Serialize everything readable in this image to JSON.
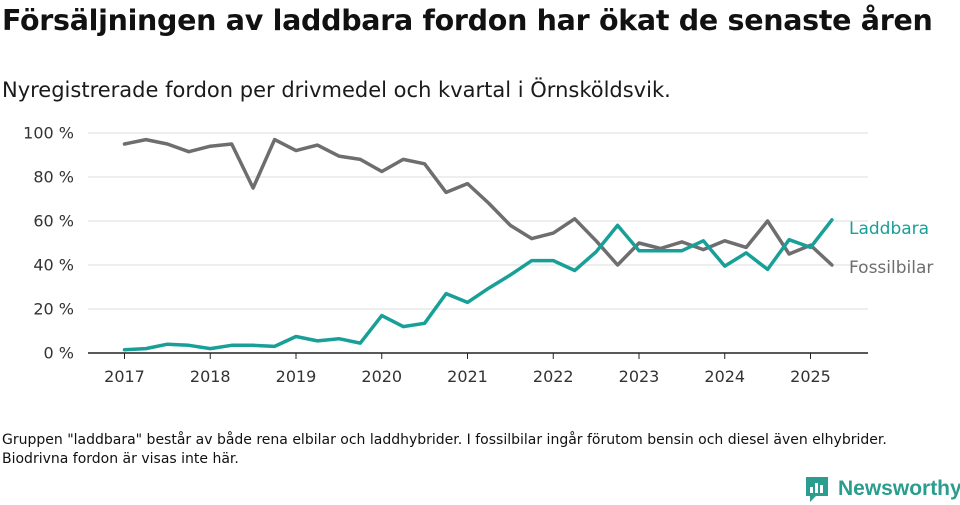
{
  "title": "Försäljningen av laddbara fordon har ökat de senaste åren",
  "subtitle": "Nyregistrerade fordon per drivmedel och kvartal i Örnsköldsvik.",
  "note": "Gruppen \"laddbara\" består av både rena elbilar och laddhybrider. I fossilbilar ingår förutom bensin och diesel även elhybrider. Biodrivna fordon är visas inte här.",
  "brand": {
    "name": "Newsworthy",
    "color": "#2a9d8f",
    "icon": "bar-chart-logo-icon"
  },
  "chart_data": {
    "type": "line",
    "x_start_year": 2017,
    "quarters_per_year": 4,
    "x_ticks": [
      "2017",
      "2018",
      "2019",
      "2020",
      "2021",
      "2022",
      "2023",
      "2024",
      "2025"
    ],
    "y_ticks": [
      "0 %",
      "20 %",
      "40 %",
      "60 %",
      "80 %",
      "100 %"
    ],
    "ylim": [
      0,
      100
    ],
    "grid": true,
    "series": [
      {
        "name": "Fossilbilar",
        "color": "#6e6e6e",
        "values": [
          95,
          97,
          95,
          91.5,
          94,
          95,
          75,
          97,
          92,
          94.5,
          89.5,
          88,
          82.5,
          88,
          86,
          73,
          77,
          68,
          58,
          52,
          54.5,
          61,
          51,
          40,
          50,
          47.5,
          50.5,
          47,
          51,
          48,
          60,
          45,
          49,
          40
        ]
      },
      {
        "name": "Laddbara",
        "color": "#18a098",
        "values": [
          1.5,
          2,
          4,
          3.5,
          2,
          3.5,
          3.5,
          3,
          7.5,
          5.5,
          6.5,
          4.5,
          17,
          12,
          13.5,
          27,
          23,
          29.5,
          35.5,
          42,
          42,
          37.5,
          46,
          58,
          46.5,
          46.5,
          46.5,
          51,
          39.5,
          45.5,
          38,
          51.5,
          48,
          60.5
        ]
      }
    ]
  }
}
